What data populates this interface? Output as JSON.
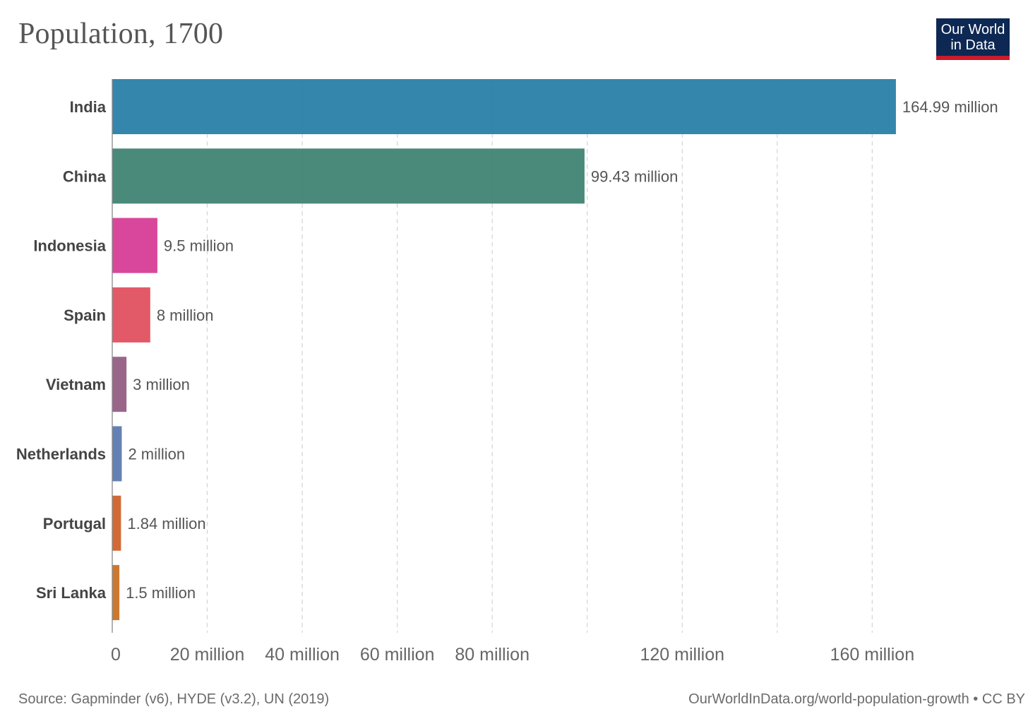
{
  "header": {
    "title": "Population, 1700"
  },
  "logo": {
    "line1": "Our World",
    "line2": "in Data",
    "bg_color": "#0d2853",
    "accent_color": "#cc1b2b"
  },
  "footer": {
    "source": "Source: Gapminder (v6), HYDE (v3.2), UN (2019)",
    "link": "OurWorldInData.org/world-population-growth • CC BY"
  },
  "chart_data": {
    "type": "bar",
    "orientation": "horizontal",
    "title": "Population, 1700",
    "categories": [
      "India",
      "China",
      "Indonesia",
      "Spain",
      "Vietnam",
      "Netherlands",
      "Portugal",
      "Sri Lanka"
    ],
    "values": [
      164990000,
      99430000,
      9500000,
      8000000,
      3000000,
      2000000,
      1840000,
      1500000
    ],
    "value_labels": [
      "164.99 million",
      "99.43 million",
      "9.5 million",
      "8 million",
      "3 million",
      "2 million",
      "1.84 million",
      "1.5 million"
    ],
    "colors": [
      "#2a7fa8",
      "#3f8474",
      "#d63d96",
      "#e0515f",
      "#945e84",
      "#5c7ab1",
      "#d0622a",
      "#c87126"
    ],
    "x_ticks": [
      {
        "value": 0,
        "label": "0"
      },
      {
        "value": 20000000,
        "label": "20 million"
      },
      {
        "value": 40000000,
        "label": "40 million"
      },
      {
        "value": 60000000,
        "label": "60 million"
      },
      {
        "value": 80000000,
        "label": "80 million"
      },
      {
        "value": 100000000,
        "label": ""
      },
      {
        "value": 120000000,
        "label": "120 million"
      },
      {
        "value": 140000000,
        "label": ""
      },
      {
        "value": 160000000,
        "label": "160 million"
      }
    ],
    "xlim": [
      0,
      166000000
    ],
    "grid": true,
    "xlabel": "",
    "ylabel": ""
  }
}
